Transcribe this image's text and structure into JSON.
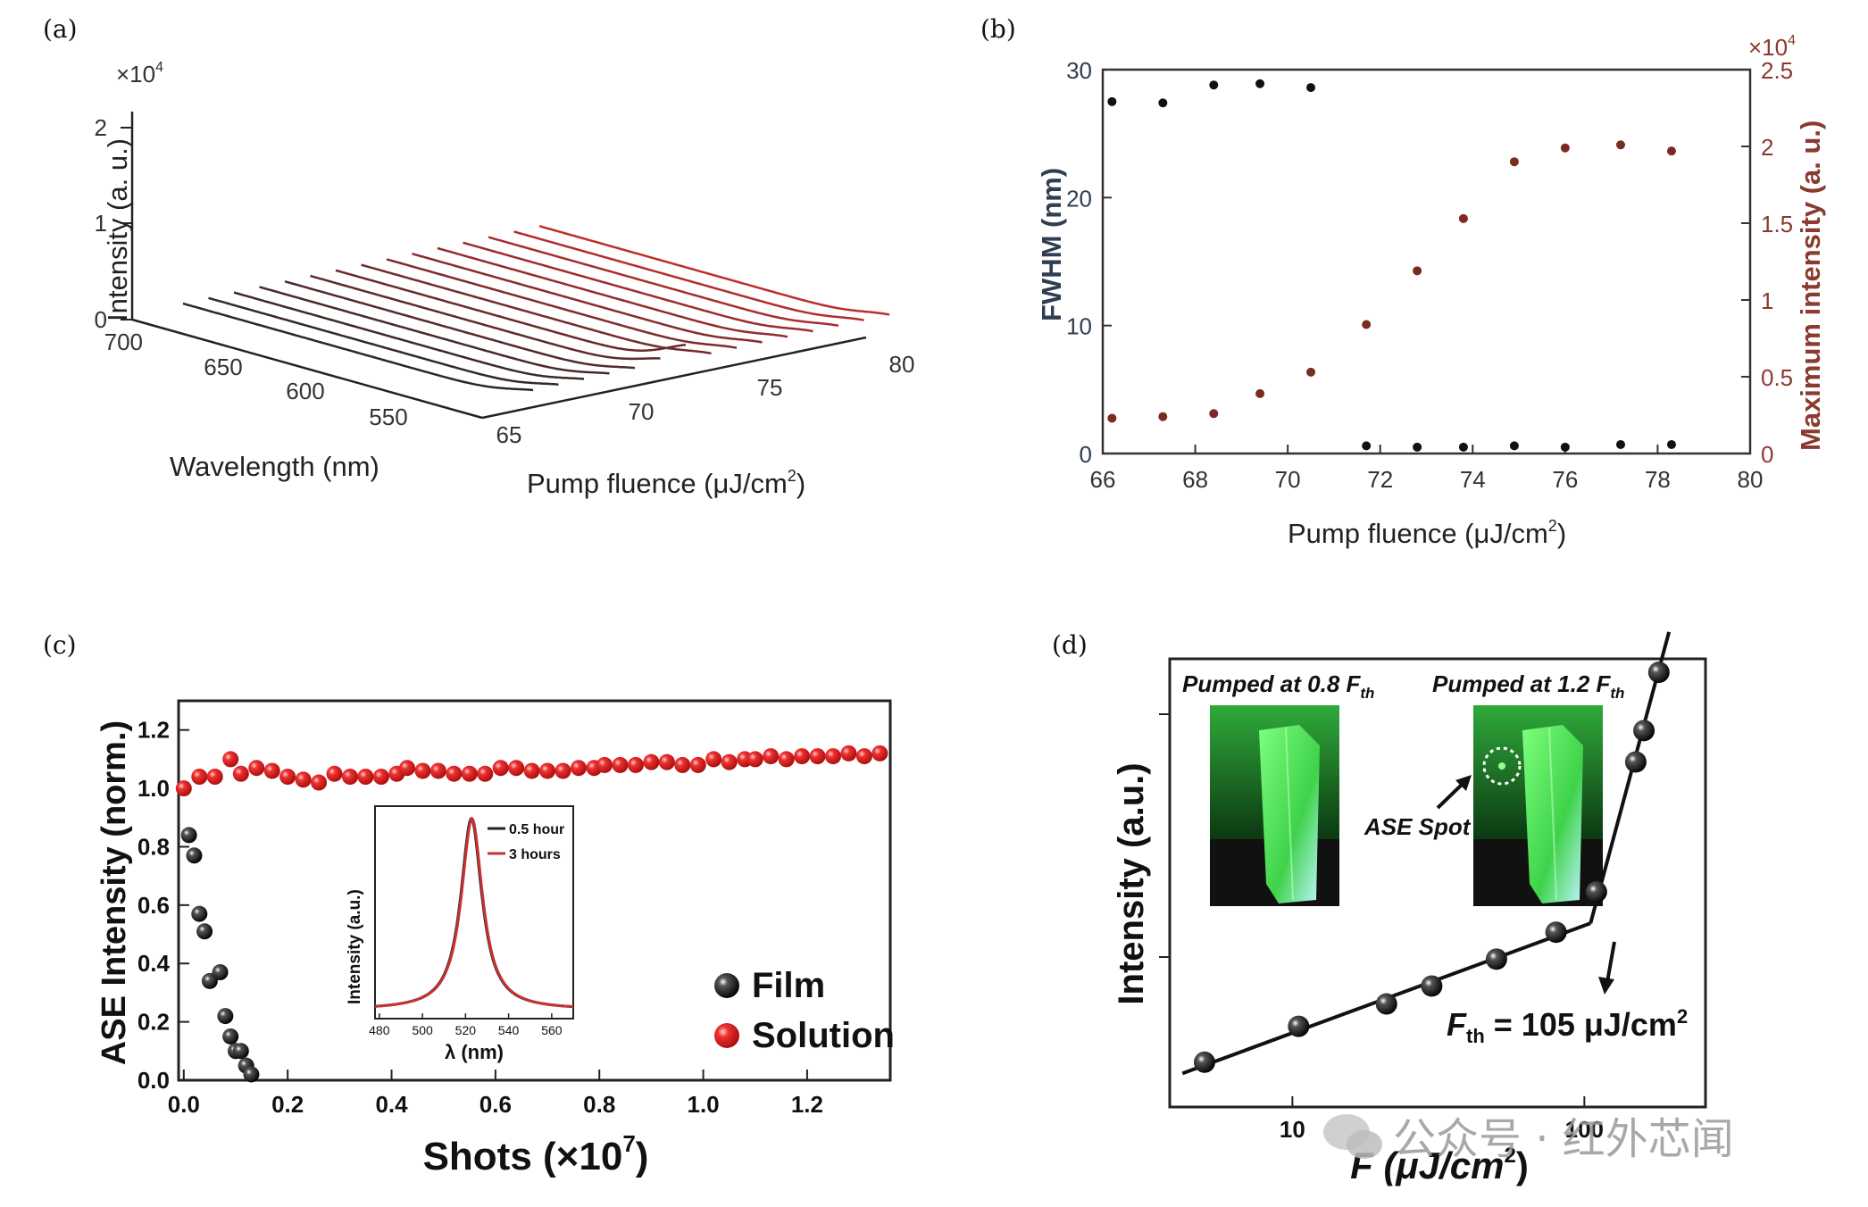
{
  "colors": {
    "fwhm": "#111111",
    "intensity_b": "#7a2b22",
    "film": "#111111",
    "solution": "#e02020",
    "axis_right_b": "#8a3a2e",
    "axis_left_b": "#2f3e52",
    "green_crystal": "#3fd24a"
  },
  "chart_data": [
    {
      "id": "a",
      "panel_label": "(a)",
      "type": "line",
      "description_3d": "waterfall",
      "exponent_label": "×10",
      "exponent_power": "4",
      "zlabel": "Intensity (a. u.)",
      "z_ticks": [
        "0",
        "1",
        "2"
      ],
      "xlabel": "Wavelength (nm)",
      "x_ticks": [
        "700",
        "650",
        "600",
        "550"
      ],
      "ylabel": "Pump fluence (μJ/cm",
      "ylabel_sup": "2",
      "ylabel_end": ")",
      "y_ticks": [
        "65",
        "70",
        "75",
        "80"
      ],
      "series_fluence": [
        65,
        66,
        67,
        68,
        69,
        70,
        71,
        72,
        73,
        74,
        75,
        76,
        77,
        78,
        79
      ],
      "series_peak_intensity": [
        0.15,
        0.15,
        0.15,
        0.15,
        0.15,
        0.2,
        0.3,
        0.45,
        0.6,
        0.8,
        1.0,
        1.35,
        1.5,
        1.6,
        1.7
      ]
    },
    {
      "id": "b",
      "panel_label": "(b)",
      "type": "scatter",
      "xlabel": "Pump fluence (μJ/cm",
      "xlabel_sup": "2",
      "xlabel_end": ")",
      "xlim": [
        66,
        80
      ],
      "x_ticks": [
        "66",
        "68",
        "70",
        "72",
        "74",
        "76",
        "78",
        "80"
      ],
      "ylabel": "FWHM (nm)",
      "ylim": [
        0,
        30
      ],
      "y_ticks": [
        "0",
        "10",
        "20",
        "30"
      ],
      "y2label": "Maximum intensity (a. u.)",
      "y2lim": [
        0,
        2.5
      ],
      "y2_ticks": [
        "0",
        "0.5",
        "1",
        "1.5",
        "2",
        "2.5"
      ],
      "y2_exponent": "×10",
      "y2_exponent_power": "4",
      "series": [
        {
          "name": "FWHM",
          "x": [
            66.2,
            67.3,
            68.4,
            69.4,
            70.5,
            71.7,
            72.8,
            73.8,
            74.9,
            76.0,
            77.2,
            78.3
          ],
          "values": [
            27.5,
            27.4,
            28.8,
            28.9,
            28.6,
            0.6,
            0.5,
            0.5,
            0.6,
            0.5,
            0.7,
            0.7
          ]
        },
        {
          "name": "Maximum intensity",
          "x": [
            66.2,
            67.3,
            68.4,
            69.4,
            70.5,
            71.7,
            72.8,
            73.8,
            74.9,
            76.0,
            77.2,
            78.3
          ],
          "values": [
            0.23,
            0.24,
            0.26,
            0.39,
            0.53,
            0.84,
            1.19,
            1.53,
            1.9,
            1.99,
            2.01,
            1.97
          ]
        }
      ]
    },
    {
      "id": "c",
      "panel_label": "(c)",
      "type": "scatter",
      "xlabel": "Shots (×10",
      "xlabel_sup": "7",
      "xlabel_end": ")",
      "xlim": [
        -0.01,
        1.36
      ],
      "x_ticks": [
        "0.0",
        "0.2",
        "0.4",
        "0.6",
        "0.8",
        "1.0",
        "1.2"
      ],
      "ylabel": "ASE Intensity (norm.)",
      "ylim": [
        0,
        1.3
      ],
      "y_ticks": [
        "0.0",
        "0.2",
        "0.4",
        "0.6",
        "0.8",
        "1.0",
        "1.2"
      ],
      "legend": [
        "Film",
        "Solution"
      ],
      "series": [
        {
          "name": "Film",
          "x": [
            0.01,
            0.02,
            0.03,
            0.04,
            0.05,
            0.07,
            0.08,
            0.09,
            0.1,
            0.11,
            0.12,
            0.13
          ],
          "values": [
            0.84,
            0.77,
            0.57,
            0.51,
            0.34,
            0.37,
            0.22,
            0.15,
            0.1,
            0.1,
            0.05,
            0.02
          ]
        },
        {
          "name": "Solution",
          "x": [
            0.0,
            0.03,
            0.06,
            0.09,
            0.11,
            0.14,
            0.17,
            0.2,
            0.23,
            0.26,
            0.29,
            0.32,
            0.35,
            0.38,
            0.41,
            0.43,
            0.46,
            0.49,
            0.52,
            0.55,
            0.58,
            0.61,
            0.64,
            0.67,
            0.7,
            0.73,
            0.76,
            0.79,
            0.81,
            0.84,
            0.87,
            0.9,
            0.93,
            0.96,
            0.99,
            1.02,
            1.05,
            1.08,
            1.1,
            1.13,
            1.16,
            1.19,
            1.22,
            1.25,
            1.28,
            1.31,
            1.34
          ],
          "values": [
            1.0,
            1.04,
            1.04,
            1.1,
            1.05,
            1.07,
            1.06,
            1.04,
            1.03,
            1.02,
            1.05,
            1.04,
            1.04,
            1.04,
            1.05,
            1.07,
            1.06,
            1.06,
            1.05,
            1.05,
            1.05,
            1.07,
            1.07,
            1.06,
            1.06,
            1.06,
            1.07,
            1.07,
            1.08,
            1.08,
            1.08,
            1.09,
            1.09,
            1.08,
            1.08,
            1.1,
            1.09,
            1.1,
            1.1,
            1.11,
            1.1,
            1.11,
            1.11,
            1.11,
            1.12,
            1.11,
            1.12
          ]
        }
      ],
      "inset": {
        "xlabel": "λ (nm)",
        "ylabel": "Intensity (a.u.)",
        "x_ticks": [
          "480",
          "500",
          "520",
          "540",
          "560"
        ],
        "xlim": [
          478,
          570
        ],
        "legend": [
          "0.5 hour",
          "3 hours"
        ],
        "peak_nm": 523,
        "width_nm": 6
      }
    },
    {
      "id": "d",
      "panel_label": "(d)",
      "type": "scatter",
      "xlabel": "F (μJ/cm",
      "xlabel_sup": "2",
      "xlabel_end": ")",
      "x_scale": "log",
      "xlim": [
        3.8,
        260
      ],
      "x_ticks": [
        "10",
        "100"
      ],
      "ylabel": "Intensity (a.u.)",
      "threshold_label": "F",
      "threshold_sub": "th",
      "threshold_value": " = 105 μJ/cm",
      "threshold_sup": "2",
      "inset_left_title": "Pumped at 0.8 F",
      "inset_right_title": "Pumped at 1.2 F",
      "inset_sub": "th",
      "ase_spot_label": "ASE Spot",
      "series": [
        {
          "name": "Intensity",
          "x": [
            5,
            10.5,
            21,
            30,
            50,
            80,
            110,
            150,
            160,
            180
          ],
          "values": [
            0.1,
            0.18,
            0.23,
            0.27,
            0.33,
            0.39,
            0.48,
            0.77,
            0.84,
            0.97
          ]
        }
      ]
    }
  ],
  "watermark": {
    "text": "公众号 · 红外芯闻"
  }
}
